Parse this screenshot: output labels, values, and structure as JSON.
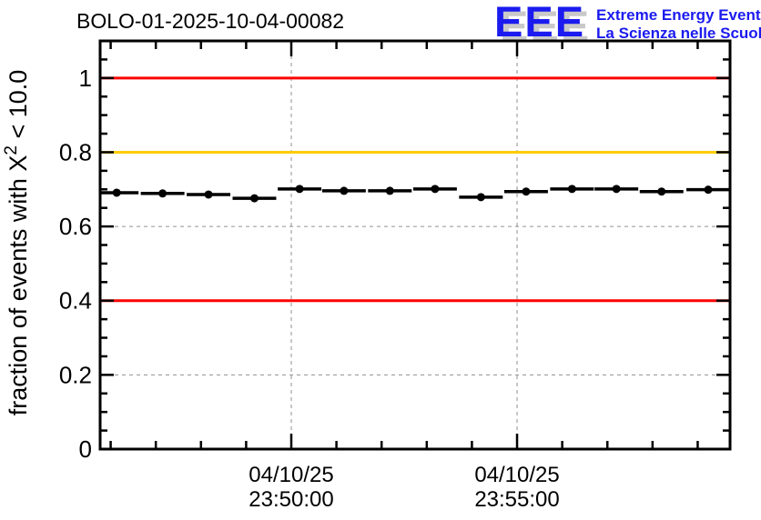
{
  "header": {
    "title": "BOLO-01-2025-10-04-00082",
    "logo": {
      "acronym": "EEE",
      "line1": "Extreme Energy Events",
      "line2": "La Scienza nelle Scuole",
      "color": "#1b1bef",
      "shadow_color": "#c9c9c9"
    }
  },
  "chart_data": {
    "type": "scatter",
    "title": "BOLO-01-2025-10-04-00082",
    "xlabel": "",
    "ylabel_parts": {
      "pre": "fraction of events with X",
      "sup": "2",
      "post": " < 10.0"
    },
    "date": "04/10/25",
    "x_times": [
      "23:46:08",
      "23:47:09",
      "23:48:10",
      "23:49:11",
      "23:50:11",
      "23:51:10",
      "23:52:11",
      "23:53:11",
      "23:54:12",
      "23:55:12",
      "23:56:13",
      "23:57:12",
      "23:58:12",
      "23:59:14"
    ],
    "values": [
      0.691,
      0.689,
      0.686,
      0.676,
      0.701,
      0.696,
      0.696,
      0.701,
      0.679,
      0.694,
      0.701,
      0.701,
      0.694,
      0.699
    ],
    "bin_half_width_sec": 29,
    "xlim_times": [
      "23:45:46",
      "23:59:43"
    ],
    "ylim": [
      0,
      1.1
    ],
    "yticks": [
      {
        "value": 1.0,
        "label": "1"
      },
      {
        "value": 0.8,
        "label": "0.8"
      },
      {
        "value": 0.6,
        "label": "0.6"
      },
      {
        "value": 0.4,
        "label": "0.4"
      },
      {
        "value": 0.2,
        "label": "0.2"
      },
      {
        "value": 0.0,
        "label": "0"
      }
    ],
    "y_minor_step": 0.05,
    "xticks_major": [
      {
        "time": "23:50:00",
        "label_lines": [
          "04/10/25",
          "23:50:00"
        ]
      },
      {
        "time": "23:55:00",
        "label_lines": [
          "04/10/25",
          "23:55:00"
        ]
      }
    ],
    "x_minor_start": "23:46:00",
    "x_minor_step_sec": 60,
    "reference_lines": [
      {
        "value": 1.0,
        "color": "#ff0000"
      },
      {
        "value": 0.8,
        "color": "#ffcc00"
      },
      {
        "value": 0.4,
        "color": "#ff0000"
      }
    ],
    "grid": {
      "color": "#909090",
      "dash": "4 4",
      "on": true
    },
    "marker": {
      "shape": "circle",
      "color": "#000000"
    },
    "legend": null
  }
}
